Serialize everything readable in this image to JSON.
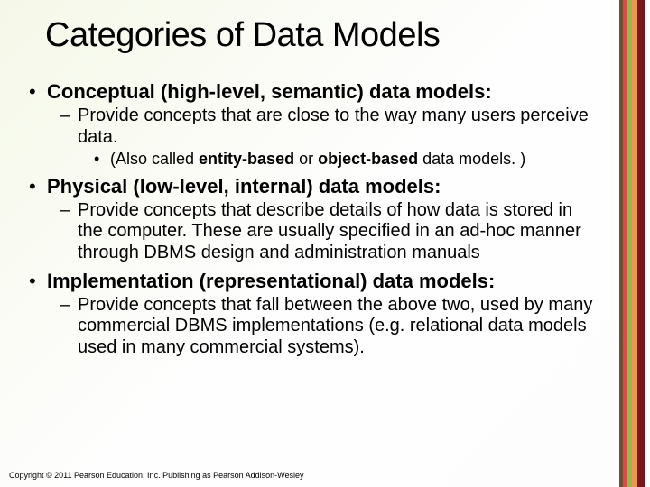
{
  "title": "Categories of Data Models",
  "sections": [
    {
      "heading": "Conceptual (high-level, semantic) data models:",
      "sub": "Provide concepts that are close to the way many users perceive data.",
      "subsub_pre": "(Also called ",
      "subsub_b1": "entity-based",
      "subsub_mid": " or ",
      "subsub_b2": "object-based",
      "subsub_post": " data models. )"
    },
    {
      "heading": "Physical (low-level, internal) data models:",
      "sub": "Provide concepts that describe details of how data is stored in the computer. These are usually specified in an ad-hoc manner through DBMS design and administration manuals"
    },
    {
      "heading": "Implementation (representational) data models:",
      "sub": "Provide concepts that fall between the above two, used by many commercial DBMS implementations (e.g. relational data models used in many commercial systems)."
    }
  ],
  "footer": "Copyright © 2011 Pearson Education, Inc. Publishing as Pearson Addison-Wesley"
}
